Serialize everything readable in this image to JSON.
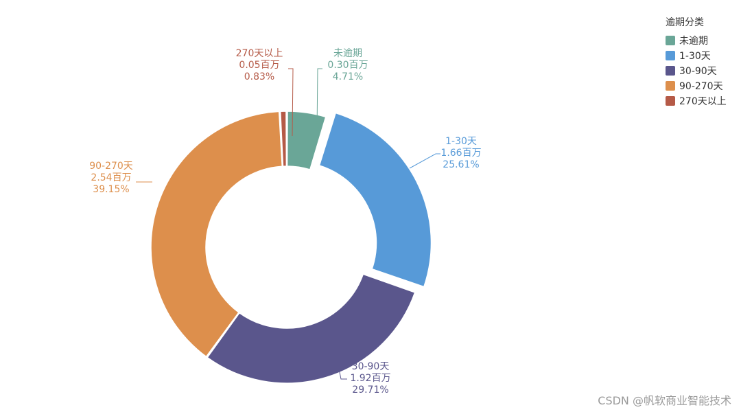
{
  "chart_data": {
    "type": "pie",
    "variant": "donut",
    "legend_title": "逾期分类",
    "legend_position": "top-right",
    "unit": "百万",
    "slices": [
      {
        "name": "未逾期",
        "value": 0.3,
        "value_label": "0.30百万",
        "percent": 4.71,
        "percent_label": "4.71%",
        "color": "#6aa697"
      },
      {
        "name": "1-30天",
        "value": 1.66,
        "value_label": "1.66百万",
        "percent": 25.61,
        "percent_label": "25.61%",
        "color": "#579ad8"
      },
      {
        "name": "30-90天",
        "value": 1.92,
        "value_label": "1.92百万",
        "percent": 29.71,
        "percent_label": "29.71%",
        "color": "#5a568c"
      },
      {
        "name": "90-270天",
        "value": 2.54,
        "value_label": "2.54百万",
        "percent": 39.15,
        "percent_label": "39.15%",
        "color": "#dd8f4c"
      },
      {
        "name": "270天以上",
        "value": 0.05,
        "value_label": "0.05百万",
        "percent": 0.83,
        "percent_label": "0.83%",
        "color": "#b55a47"
      }
    ]
  },
  "watermark": "CSDN @帆软商业智能技术"
}
